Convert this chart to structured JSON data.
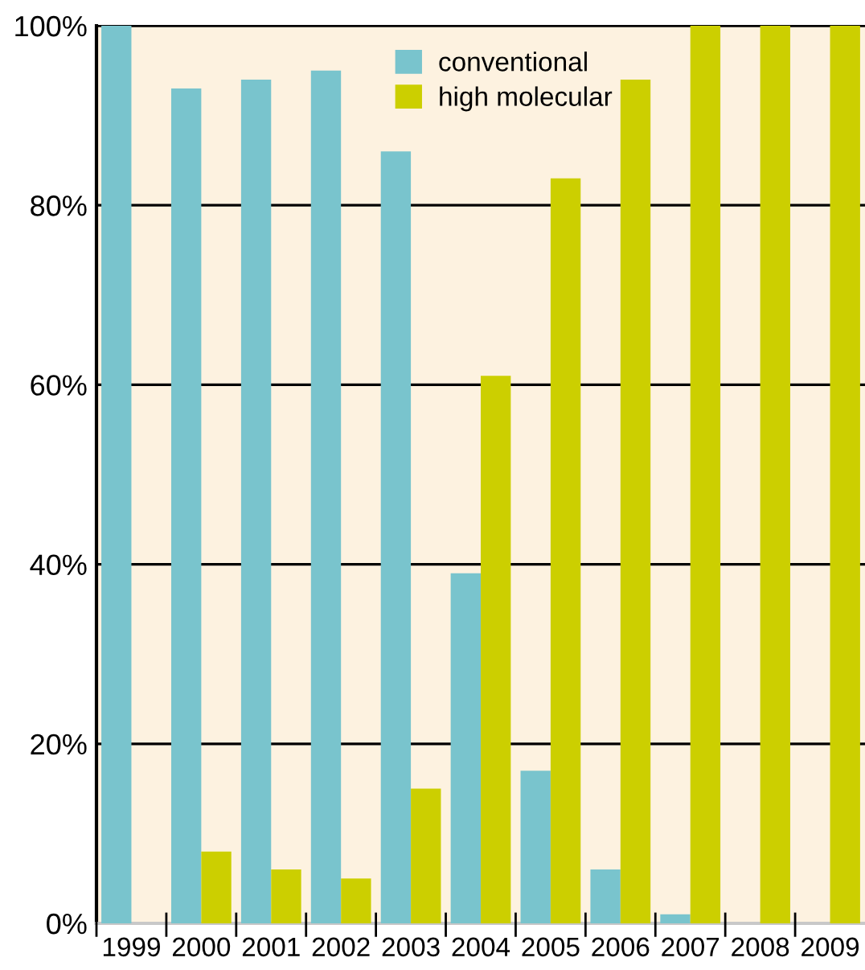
{
  "chart_data": {
    "type": "bar",
    "categories": [
      "1999",
      "2000",
      "2001",
      "2002",
      "2003",
      "2004",
      "2005",
      "2006",
      "2007",
      "2008",
      "2009"
    ],
    "series": [
      {
        "name": "conventional",
        "color": "#79c4cd",
        "values": [
          100,
          93,
          94,
          95,
          86,
          39,
          17,
          6,
          1,
          0,
          0
        ]
      },
      {
        "name": "high molecular",
        "color": "#cccf00",
        "values": [
          0,
          8,
          6,
          5,
          15,
          61,
          83,
          94,
          100,
          100,
          100
        ]
      }
    ],
    "ylim": [
      0,
      100
    ],
    "yticks": [
      {
        "value": 0,
        "label": "0%"
      },
      {
        "value": 20,
        "label": "20%"
      },
      {
        "value": 40,
        "label": "40%"
      },
      {
        "value": 60,
        "label": "60%"
      },
      {
        "value": 80,
        "label": "80%"
      },
      {
        "value": 100,
        "label": "100%"
      }
    ],
    "grid": "y",
    "legend": "top"
  }
}
